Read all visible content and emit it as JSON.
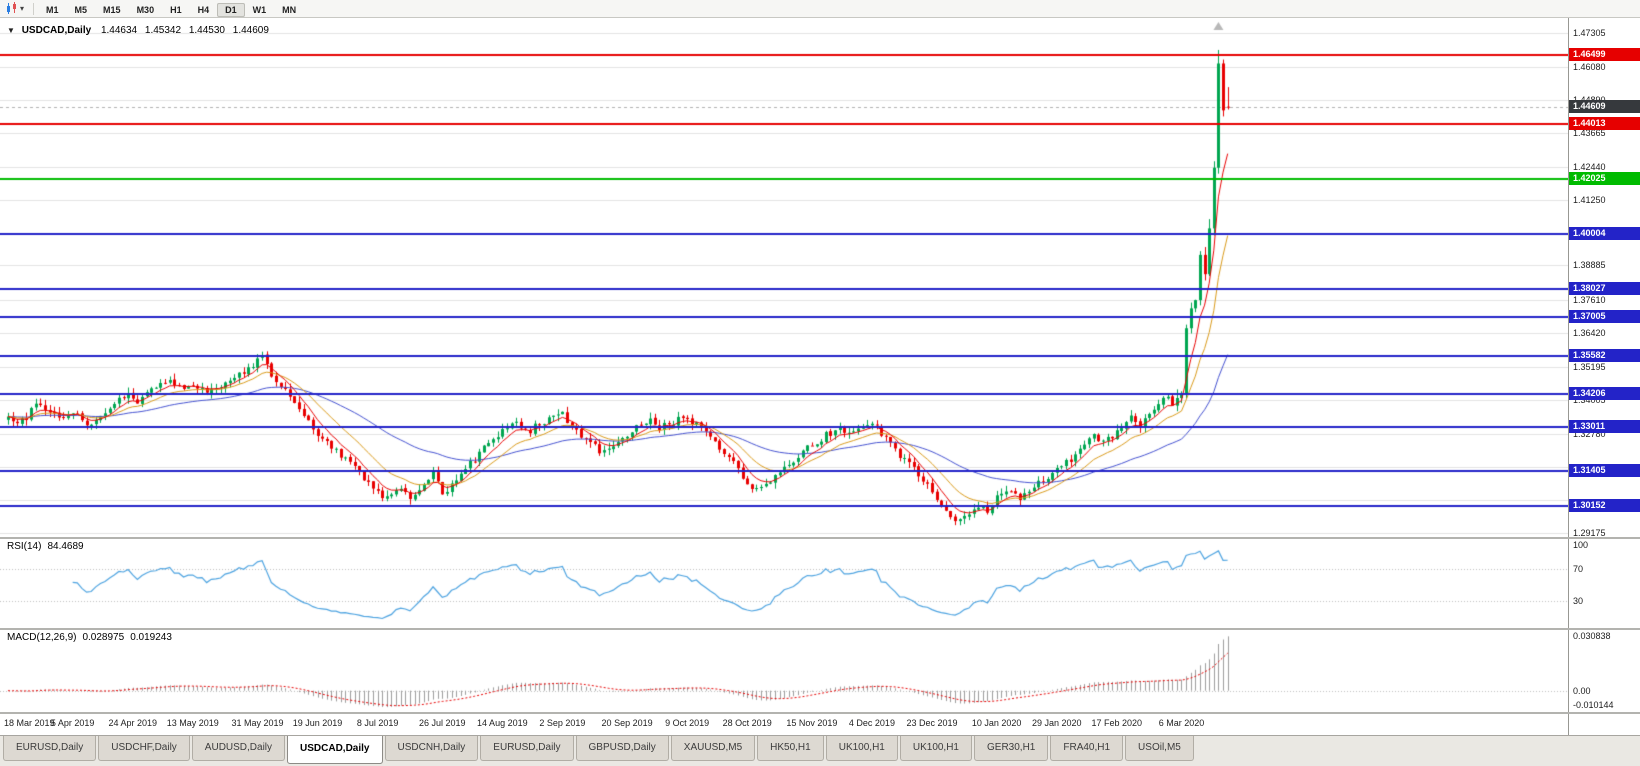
{
  "toolbar": {
    "dropdown_icon": "▾",
    "timeframes": [
      "M1",
      "M5",
      "M15",
      "M30",
      "H1",
      "H4",
      "D1",
      "W1",
      "MN"
    ],
    "active_timeframe": "D1"
  },
  "chart_header": {
    "collapse_icon": "▼",
    "symbol": "USDCAD,Daily",
    "open": "1.44634",
    "high": "1.45342",
    "low": "1.44530",
    "close": "1.44609"
  },
  "price_scale": {
    "ticks": [
      "1.47305",
      "1.46080",
      "1.44890",
      "1.43665",
      "1.42440",
      "1.41250",
      "1.38885",
      "1.37610",
      "1.36420",
      "1.35195",
      "1.34005",
      "1.32780",
      "1.29175"
    ],
    "current_badge": {
      "label": "1.44609",
      "color": "#36393d"
    }
  },
  "levels": [
    {
      "price": 1.46499,
      "label": "1.46499",
      "color": "#e60000",
      "type": "resistance"
    },
    {
      "price": 1.44013,
      "label": "1.44013",
      "color": "#e60000",
      "type": "resistance"
    },
    {
      "price": 1.42025,
      "label": "1.42025",
      "color": "#00bb00",
      "type": "level"
    },
    {
      "price": 1.40004,
      "label": "1.40004",
      "color": "#2323c8",
      "type": "support"
    },
    {
      "price": 1.38027,
      "label": "1.38027",
      "color": "#2323c8",
      "type": "support"
    },
    {
      "price": 1.37005,
      "label": "1.37005",
      "color": "#2323c8",
      "type": "support"
    },
    {
      "price": 1.35582,
      "label": "1.35582",
      "color": "#2323c8",
      "type": "support"
    },
    {
      "price": 1.34206,
      "label": "1.34206",
      "color": "#2323c8",
      "type": "support"
    },
    {
      "price": 1.33011,
      "label": "1.33011",
      "color": "#2323c8",
      "type": "support"
    },
    {
      "price": 1.31405,
      "label": "1.31405",
      "color": "#2323c8",
      "type": "support"
    },
    {
      "price": 1.30152,
      "label": "1.30152",
      "color": "#2323c8",
      "type": "support"
    }
  ],
  "rsi_panel": {
    "name": "RSI(14)",
    "value": "84.4689",
    "scale_labels": [
      "100",
      "70",
      "30"
    ],
    "levels": [
      70,
      30
    ],
    "line_color": "#4da3e0"
  },
  "macd_panel": {
    "name": "MACD(12,26,9)",
    "value_main": "0.028975",
    "value_signal": "0.019243",
    "scale_labels": [
      "0.030838",
      "0.00",
      "-0.010144"
    ],
    "scale_max": 0.030838,
    "scale_min": -0.010144,
    "histogram_color": "#9c9c9c",
    "signal_color": "#e60000"
  },
  "tabs": {
    "items": [
      "EURUSD,Daily",
      "USDCHF,Daily",
      "AUDUSD,Daily",
      "USDCAD,Daily",
      "USDCNH,Daily",
      "EURUSD,Daily",
      "GBPUSD,Daily",
      "XAUUSD,M5",
      "HK50,H1",
      "UK100,H1",
      "UK100,H1",
      "GER30,H1",
      "FRA40,H1",
      "USOil,M5"
    ],
    "active_index": 3
  },
  "chart_data": {
    "type": "candlestick",
    "title": "USDCAD,Daily",
    "bars_count": 265,
    "y_range": [
      1.29175,
      1.47305
    ],
    "last_bar": {
      "open": 1.44634,
      "high": 1.45342,
      "low": 1.4453,
      "close": 1.44609
    },
    "peak_high": 1.4669,
    "up_color": "#00a651",
    "down_color": "#e80000",
    "hidden_grid_prices": [
      1.40068,
      1.31578,
      1.30377
    ],
    "x_labels": [
      "18 Mar 2019",
      "5 Apr 2019",
      "24 Apr 2019",
      "13 May 2019",
      "31 May 2019",
      "19 Jun 2019",
      "8 Jul 2019",
      "26 Jul 2019",
      "14 Aug 2019",
      "2 Sep 2019",
      "20 Sep 2019",
      "9 Oct 2019",
      "28 Oct 2019",
      "15 Nov 2019",
      "4 Dec 2019",
      "23 Dec 2019",
      "10 Jan 2020",
      "29 Jan 2020",
      "17 Feb 2020",
      "6 Mar 2020"
    ],
    "x_label_indices": [
      0,
      14,
      27,
      40,
      54,
      67,
      80,
      94,
      107,
      120,
      134,
      147,
      160,
      174,
      187,
      200,
      214,
      227,
      240,
      254
    ],
    "moving_averages": [
      {
        "period": 6,
        "color": "#e80000"
      },
      {
        "period": 14,
        "color": "#d99a1a"
      },
      {
        "period": 45,
        "color": "#4350d0"
      }
    ],
    "price_path_anchors": [
      [
        0,
        1.334
      ],
      [
        2,
        1.3318
      ],
      [
        4,
        1.3338
      ],
      [
        6,
        1.3392
      ],
      [
        8,
        1.3368
      ],
      [
        11,
        1.3335
      ],
      [
        14,
        1.3356
      ],
      [
        17,
        1.3312
      ],
      [
        20,
        1.334
      ],
      [
        23,
        1.3386
      ],
      [
        26,
        1.342
      ],
      [
        28,
        1.3396
      ],
      [
        31,
        1.344
      ],
      [
        34,
        1.347
      ],
      [
        37,
        1.3442
      ],
      [
        40,
        1.346
      ],
      [
        43,
        1.3426
      ],
      [
        46,
        1.3452
      ],
      [
        49,
        1.3482
      ],
      [
        52,
        1.3512
      ],
      [
        54,
        1.3548
      ],
      [
        55,
        1.356
      ],
      [
        57,
        1.3496
      ],
      [
        60,
        1.344
      ],
      [
        62,
        1.3392
      ],
      [
        64,
        1.3342
      ],
      [
        67,
        1.3272
      ],
      [
        70,
        1.3226
      ],
      [
        73,
        1.3182
      ],
      [
        76,
        1.3132
      ],
      [
        79,
        1.3086
      ],
      [
        81,
        1.3056
      ],
      [
        84,
        1.3076
      ],
      [
        87,
        1.3046
      ],
      [
        90,
        1.3092
      ],
      [
        92,
        1.313
      ],
      [
        94,
        1.3062
      ],
      [
        96,
        1.3092
      ],
      [
        99,
        1.3152
      ],
      [
        102,
        1.3202
      ],
      [
        104,
        1.3242
      ],
      [
        107,
        1.3292
      ],
      [
        109,
        1.3322
      ],
      [
        112,
        1.3282
      ],
      [
        115,
        1.3312
      ],
      [
        118,
        1.3332
      ],
      [
        120,
        1.3346
      ],
      [
        122,
        1.3302
      ],
      [
        125,
        1.3262
      ],
      [
        128,
        1.3218
      ],
      [
        131,
        1.3242
      ],
      [
        134,
        1.3276
      ],
      [
        137,
        1.3312
      ],
      [
        139,
        1.3332
      ],
      [
        141,
        1.3296
      ],
      [
        144,
        1.3322
      ],
      [
        147,
        1.3336
      ],
      [
        150,
        1.3292
      ],
      [
        153,
        1.3242
      ],
      [
        156,
        1.3192
      ],
      [
        158,
        1.3152
      ],
      [
        160,
        1.3092
      ],
      [
        162,
        1.3072
      ],
      [
        165,
        1.3112
      ],
      [
        168,
        1.3152
      ],
      [
        171,
        1.3196
      ],
      [
        174,
        1.3236
      ],
      [
        177,
        1.3272
      ],
      [
        180,
        1.3302
      ],
      [
        182,
        1.3272
      ],
      [
        185,
        1.3302
      ],
      [
        187,
        1.3312
      ],
      [
        190,
        1.3262
      ],
      [
        193,
        1.3202
      ],
      [
        196,
        1.3152
      ],
      [
        198,
        1.3112
      ],
      [
        200,
        1.3062
      ],
      [
        202,
        1.3016
      ],
      [
        204,
        1.2976
      ],
      [
        206,
        1.2958
      ],
      [
        208,
        1.2992
      ],
      [
        210,
        1.3016
      ],
      [
        212,
        1.2996
      ],
      [
        214,
        1.3052
      ],
      [
        216,
        1.3076
      ],
      [
        219,
        1.3046
      ],
      [
        222,
        1.3086
      ],
      [
        224,
        1.3116
      ],
      [
        227,
        1.3142
      ],
      [
        230,
        1.3186
      ],
      [
        233,
        1.3232
      ],
      [
        235,
        1.3266
      ],
      [
        237,
        1.3242
      ],
      [
        239,
        1.3272
      ],
      [
        241,
        1.3302
      ],
      [
        243,
        1.3332
      ],
      [
        245,
        1.3306
      ],
      [
        247,
        1.3346
      ],
      [
        249,
        1.3386
      ],
      [
        251,
        1.3422
      ],
      [
        252,
        1.3392
      ],
      [
        254,
        1.3422
      ],
      [
        255,
        1.366
      ],
      [
        256,
        1.3732
      ],
      [
        257,
        1.3762
      ],
      [
        258,
        1.3926
      ],
      [
        259,
        1.3856
      ],
      [
        260,
        1.4022
      ],
      [
        261,
        1.4242
      ],
      [
        262,
        1.462
      ],
      [
        263,
        1.445
      ],
      [
        264,
        1.44609
      ]
    ]
  }
}
